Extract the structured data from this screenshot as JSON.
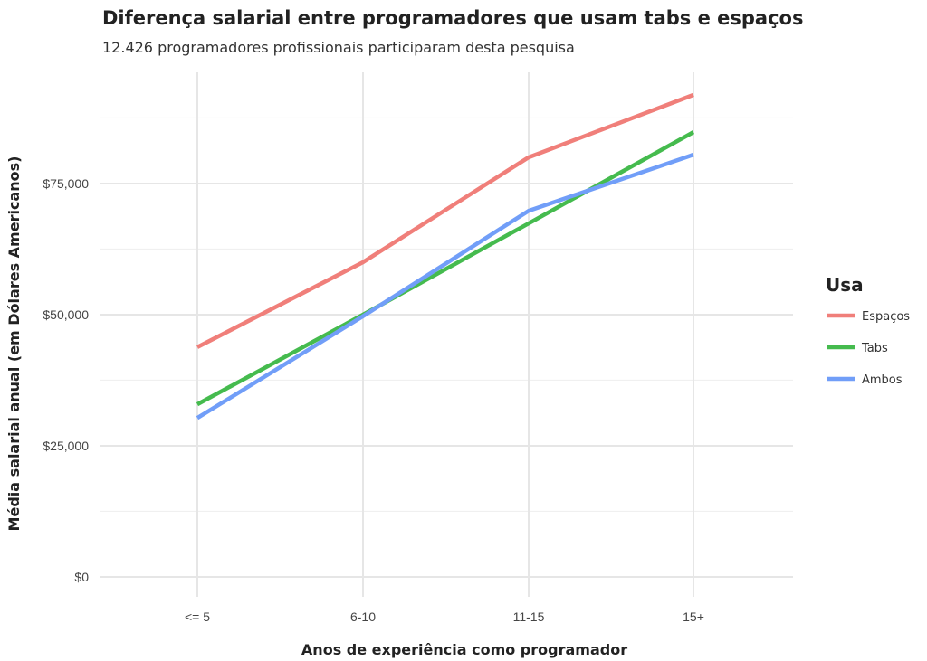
{
  "chart_data": {
    "type": "line",
    "title": "Diferença salarial entre programadores que usam tabs e espaços",
    "subtitle": "12.426 programadores profissionais participaram desta pesquisa",
    "xlabel": "Anos de experiência como programador",
    "ylabel": "Média salarial anual (em Dólares Americanos)",
    "categories": [
      "<= 5",
      "6-10",
      "11-15",
      "15+"
    ],
    "yticks": [
      0,
      25000,
      50000,
      75000
    ],
    "ytick_labels": [
      "$0",
      "$25,000",
      "$50,000",
      "$75,000"
    ],
    "ylim": [
      -3800,
      96200
    ],
    "grid": true,
    "legend_title": "Usa",
    "legend_position": "right",
    "series": [
      {
        "name": "Espaços",
        "color": "#F07F7A",
        "values": [
          43800,
          60000,
          80000,
          91900
        ]
      },
      {
        "name": "Tabs",
        "color": "#45BB4E",
        "values": [
          32900,
          50000,
          67400,
          84800
        ]
      },
      {
        "name": "Ambos",
        "color": "#719EF8",
        "values": [
          30300,
          49700,
          69800,
          80500
        ]
      }
    ]
  }
}
